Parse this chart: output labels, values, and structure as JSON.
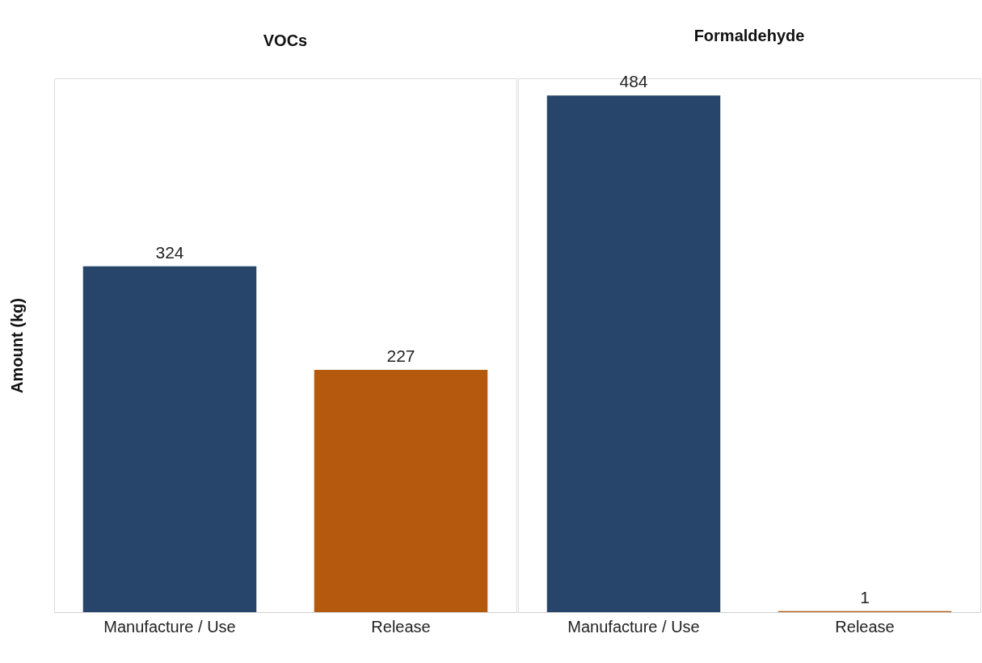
{
  "chart_data": [
    {
      "type": "bar",
      "title": "VOCs",
      "ylabel": "Amount (kg)",
      "categories": [
        "Manufacture / Use",
        "Release"
      ],
      "values": [
        324,
        227
      ],
      "colors": [
        "#27456b",
        "#b5590e"
      ],
      "data_labels": true,
      "tick_labels": "x"
    },
    {
      "type": "bar",
      "title": "Formaldehyde",
      "categories": [
        "Manufacture / Use",
        "Release"
      ],
      "values": [
        484,
        1
      ],
      "colors": [
        "#27456b",
        "#b5590e"
      ],
      "data_labels": true,
      "tick_labels": "x"
    }
  ]
}
